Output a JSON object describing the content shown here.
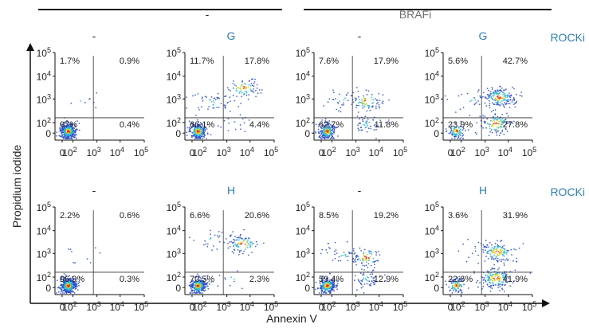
{
  "colors": {
    "blue_label": "#2f7fb8",
    "grey_label": "#6f6f6f",
    "text": "#222222",
    "axis": "#111111",
    "dot_low": "#2b4fc7",
    "dot_mid": "#28b9d8",
    "dot_high": "#e8d21a",
    "dot_peak": "#e5301e"
  },
  "header": {
    "group_left": "-",
    "group_right": "BRAFi"
  },
  "axes": {
    "y_label": "Propidium iodide",
    "x_label": "Annexin V"
  },
  "ticks": {
    "y_upper": [
      {
        "base": "10",
        "exp": "5"
      },
      {
        "base": "10",
        "exp": "4"
      },
      {
        "base": "10",
        "exp": "3"
      },
      {
        "base": "10",
        "exp": "2"
      },
      {
        "base": "0",
        "exp": ""
      }
    ],
    "x": [
      {
        "base": "0",
        "exp": ""
      },
      {
        "base": "10",
        "exp": "2"
      },
      {
        "base": "10",
        "exp": "3"
      },
      {
        "base": "10",
        "exp": "4"
      },
      {
        "base": "10",
        "exp": "5"
      }
    ]
  },
  "row_labels": [
    "ROCKi",
    "ROCKi"
  ],
  "chart_data": [
    {
      "type": "scatter",
      "title": "-",
      "title_color": "dark",
      "row": 0,
      "col": 0,
      "axis_scale": "biexponential",
      "xlabel": "Annexin V",
      "ylabel": "Propidium iodide",
      "quadrants": {
        "upper_left": "1.7%",
        "upper_right": "0.9%",
        "lower_left": "97%",
        "lower_right": "0.4%"
      },
      "populations": [
        {
          "x": 0,
          "y": 0,
          "weight": 0.97,
          "label": "lower_left"
        },
        {
          "x": 200,
          "y": 900,
          "weight": 0.017,
          "label": "upper_left"
        }
      ]
    },
    {
      "type": "scatter",
      "title": "G",
      "title_color": "blue",
      "row": 0,
      "col": 1,
      "axis_scale": "biexponential",
      "xlabel": "Annexin V",
      "ylabel": "Propidium iodide",
      "quadrants": {
        "upper_left": "11.7%",
        "upper_right": "17.8%",
        "lower_left": "66.1%",
        "lower_right": "4.4%"
      },
      "populations": [
        {
          "x": 0,
          "y": 0,
          "weight": 0.661,
          "label": "lower_left"
        },
        {
          "x": 300,
          "y": 700,
          "weight": 0.117,
          "label": "upper_left"
        },
        {
          "x": 5000,
          "y": 3000,
          "weight": 0.178,
          "label": "upper_right"
        },
        {
          "x": 2000,
          "y": 60,
          "weight": 0.044,
          "label": "lower_right"
        }
      ]
    },
    {
      "type": "scatter",
      "title": "-",
      "title_color": "dark",
      "row": 0,
      "col": 2,
      "axis_scale": "biexponential",
      "xlabel": "Annexin V",
      "ylabel": "Propidium iodide",
      "quadrants": {
        "upper_left": "7.6%",
        "upper_right": "17.9%",
        "lower_left": "62.7%",
        "lower_right": "11.8%"
      },
      "populations": [
        {
          "x": 0,
          "y": 0,
          "weight": 0.627,
          "label": "lower_left"
        },
        {
          "x": 300,
          "y": 900,
          "weight": 0.076,
          "label": "upper_left"
        },
        {
          "x": 3000,
          "y": 800,
          "weight": 0.179,
          "label": "upper_right"
        },
        {
          "x": 3000,
          "y": 50,
          "weight": 0.118,
          "label": "lower_right"
        }
      ]
    },
    {
      "type": "scatter",
      "title": "G",
      "title_color": "blue",
      "row": 0,
      "col": 3,
      "axis_scale": "biexponential",
      "xlabel": "Annexin V",
      "ylabel": "Propidium iodide",
      "quadrants": {
        "upper_left": "5.6%",
        "upper_right": "42.7%",
        "lower_left": "23.9%",
        "lower_right": "27.8%"
      },
      "populations": [
        {
          "x": 0,
          "y": 0,
          "weight": 0.239,
          "label": "lower_left"
        },
        {
          "x": 300,
          "y": 900,
          "weight": 0.056,
          "label": "upper_left"
        },
        {
          "x": 4000,
          "y": 1200,
          "weight": 0.427,
          "label": "upper_right"
        },
        {
          "x": 3000,
          "y": 60,
          "weight": 0.278,
          "label": "lower_right"
        }
      ]
    },
    {
      "type": "scatter",
      "title": "-",
      "title_color": "dark",
      "row": 1,
      "col": 0,
      "axis_scale": "biexponential",
      "xlabel": "Annexin V",
      "ylabel": "Propidium iodide",
      "quadrants": {
        "upper_left": "2.2%",
        "upper_right": "0.6%",
        "lower_left": "96.9%",
        "lower_right": "0.3%"
      },
      "populations": [
        {
          "x": 0,
          "y": 0,
          "weight": 0.969,
          "label": "lower_left"
        },
        {
          "x": 200,
          "y": 900,
          "weight": 0.022,
          "label": "upper_left"
        }
      ]
    },
    {
      "type": "scatter",
      "title": "H",
      "title_color": "blue",
      "row": 1,
      "col": 1,
      "axis_scale": "biexponential",
      "xlabel": "Annexin V",
      "ylabel": "Propidium iodide",
      "quadrants": {
        "upper_left": "6.6%",
        "upper_right": "20.6%",
        "lower_left": "70.5%",
        "lower_right": "2.3%"
      },
      "populations": [
        {
          "x": 0,
          "y": 0,
          "weight": 0.705,
          "label": "lower_left"
        },
        {
          "x": 300,
          "y": 4000,
          "weight": 0.066,
          "label": "upper_left"
        },
        {
          "x": 5000,
          "y": 2500,
          "weight": 0.206,
          "label": "upper_right"
        },
        {
          "x": 2000,
          "y": 60,
          "weight": 0.023,
          "label": "lower_right"
        }
      ]
    },
    {
      "type": "scatter",
      "title": "-",
      "title_color": "dark",
      "row": 1,
      "col": 2,
      "axis_scale": "biexponential",
      "xlabel": "Annexin V",
      "ylabel": "Propidium iodide",
      "quadrants": {
        "upper_left": "8.5%",
        "upper_right": "19.2%",
        "lower_left": "59.4%",
        "lower_right": "12.9%"
      },
      "populations": [
        {
          "x": 0,
          "y": 0,
          "weight": 0.594,
          "label": "lower_left"
        },
        {
          "x": 300,
          "y": 900,
          "weight": 0.085,
          "label": "upper_left"
        },
        {
          "x": 3000,
          "y": 700,
          "weight": 0.192,
          "label": "upper_right"
        },
        {
          "x": 3000,
          "y": 50,
          "weight": 0.129,
          "label": "lower_right"
        }
      ]
    },
    {
      "type": "scatter",
      "title": "H",
      "title_color": "blue",
      "row": 1,
      "col": 3,
      "axis_scale": "biexponential",
      "xlabel": "Annexin V",
      "ylabel": "Propidium iodide",
      "quadrants": {
        "upper_left": "3.6%",
        "upper_right": "31.9%",
        "lower_left": "22.6%",
        "lower_right": "41.9%"
      },
      "populations": [
        {
          "x": 0,
          "y": 0,
          "weight": 0.226,
          "label": "lower_left"
        },
        {
          "x": 300,
          "y": 1500,
          "weight": 0.036,
          "label": "upper_left"
        },
        {
          "x": 3500,
          "y": 1200,
          "weight": 0.319,
          "label": "upper_right"
        },
        {
          "x": 3000,
          "y": 60,
          "weight": 0.419,
          "label": "lower_right"
        }
      ]
    }
  ]
}
